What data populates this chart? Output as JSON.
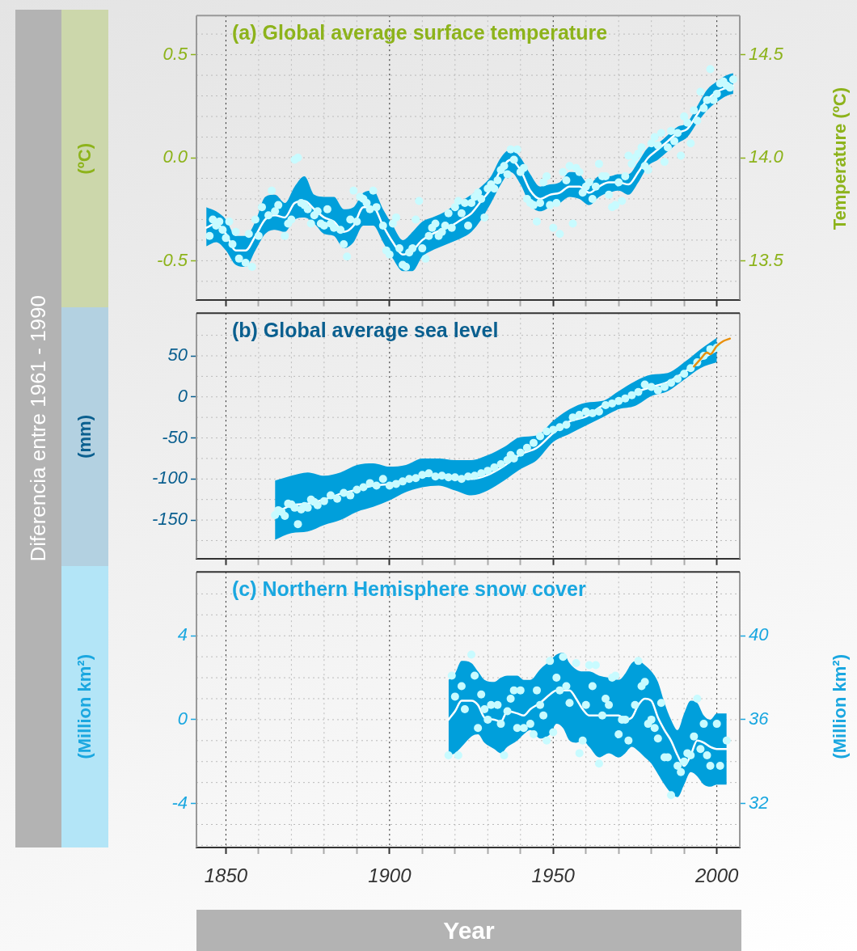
{
  "chart_data": [
    {
      "type": "line",
      "title": "(a) Global average surface temperature",
      "ylabel": "(ºC)",
      "y2label": "Temperature (ºC)",
      "annotations": [
        "Diferencia entre 1961 - 1990"
      ],
      "xlim": [
        1841,
        2007
      ],
      "xticks": [
        1850,
        {
          "value": 1860,
          "label": null
        },
        {
          "value": 1870,
          "label": null
        },
        {
          "value": 1880,
          "label": null
        },
        {
          "value": 1890,
          "label": null
        },
        1900,
        {
          "value": 1910,
          "label": null
        },
        {
          "value": 1920,
          "label": null
        },
        {
          "value": 1930,
          "label": null
        },
        {
          "value": 1940,
          "label": null
        },
        1950,
        {
          "value": 1960,
          "label": null
        },
        {
          "value": 1970,
          "label": null
        },
        {
          "value": 1980,
          "label": null
        },
        {
          "value": 1990,
          "label": null
        },
        2000
      ],
      "ylim": [
        -0.69,
        0.69
      ],
      "yticks": [
        {
          "value": -0.6,
          "label": null
        },
        -0.5,
        {
          "value": -0.4,
          "label": null
        },
        {
          "value": -0.3,
          "label": null
        },
        {
          "value": -0.2,
          "label": null
        },
        {
          "value": -0.1,
          "label": null
        },
        {
          "value": 0,
          "label": "0.0"
        },
        {
          "value": 0.1,
          "label": null
        },
        {
          "value": 0.2,
          "label": null
        },
        {
          "value": 0.3,
          "label": null
        },
        {
          "value": 0.4,
          "label": null
        },
        0.5,
        {
          "value": 0.6,
          "label": null
        }
      ],
      "y2lim": [
        13.31,
        14.69
      ],
      "y2ticks": [
        13.5,
        {
          "value": 14,
          "label": "14.0"
        },
        14.5
      ],
      "grid": true,
      "tick_labels": "y",
      "series": [
        {
          "type": "line",
          "color": "#ffffff",
          "x": [
            1844,
            1847,
            1850,
            1853,
            1856,
            1859,
            1862,
            1865,
            1868,
            1871,
            1874,
            1877,
            1880,
            1883,
            1886,
            1889,
            1892,
            1895,
            1898,
            1901,
            1904,
            1907,
            1910,
            1913,
            1916,
            1919,
            1922,
            1925,
            1928,
            1931,
            1934,
            1937,
            1940,
            1943,
            1946,
            1949,
            1952,
            1955,
            1958,
            1961,
            1964,
            1967,
            1970,
            1973,
            1976,
            1979,
            1982,
            1985,
            1988,
            1991,
            1994,
            1997,
            2000,
            2003,
            2005
          ],
          "values": [
            -0.34,
            -0.32,
            -0.37,
            -0.45,
            -0.45,
            -0.38,
            -0.3,
            -0.28,
            -0.29,
            -0.22,
            -0.21,
            -0.25,
            -0.29,
            -0.31,
            -0.36,
            -0.33,
            -0.24,
            -0.24,
            -0.33,
            -0.41,
            -0.47,
            -0.45,
            -0.4,
            -0.37,
            -0.35,
            -0.33,
            -0.3,
            -0.27,
            -0.21,
            -0.15,
            -0.06,
            -0.01,
            -0.06,
            -0.16,
            -0.2,
            -0.18,
            -0.17,
            -0.14,
            -0.14,
            -0.17,
            -0.14,
            -0.12,
            -0.12,
            -0.13,
            -0.07,
            0.0,
            0.04,
            0.08,
            0.12,
            0.14,
            0.21,
            0.28,
            0.32,
            0.34,
            0.35
          ],
          "upper": [
            -0.24,
            -0.26,
            -0.3,
            -0.38,
            -0.38,
            -0.31,
            -0.19,
            -0.18,
            -0.22,
            -0.14,
            -0.09,
            -0.18,
            -0.19,
            -0.19,
            -0.25,
            -0.24,
            -0.17,
            -0.16,
            -0.25,
            -0.33,
            -0.4,
            -0.36,
            -0.31,
            -0.29,
            -0.27,
            -0.24,
            -0.21,
            -0.18,
            -0.14,
            -0.09,
            0.0,
            0.04,
            0.0,
            -0.08,
            -0.14,
            -0.13,
            -0.12,
            -0.07,
            -0.08,
            -0.13,
            -0.09,
            -0.09,
            -0.08,
            -0.08,
            -0.02,
            0.05,
            0.07,
            0.11,
            0.15,
            0.17,
            0.25,
            0.33,
            0.37,
            0.4,
            0.41
          ],
          "lower": [
            -0.43,
            -0.41,
            -0.45,
            -0.52,
            -0.53,
            -0.45,
            -0.37,
            -0.35,
            -0.36,
            -0.3,
            -0.29,
            -0.32,
            -0.37,
            -0.38,
            -0.44,
            -0.41,
            -0.33,
            -0.33,
            -0.41,
            -0.49,
            -0.55,
            -0.55,
            -0.48,
            -0.45,
            -0.43,
            -0.41,
            -0.39,
            -0.36,
            -0.3,
            -0.22,
            -0.13,
            -0.07,
            -0.13,
            -0.23,
            -0.26,
            -0.24,
            -0.22,
            -0.19,
            -0.2,
            -0.23,
            -0.19,
            -0.17,
            -0.16,
            -0.18,
            -0.12,
            -0.04,
            -0.01,
            0.03,
            0.07,
            0.1,
            0.17,
            0.23,
            0.27,
            0.3,
            0.31
          ]
        },
        {
          "type": "scatter",
          "color": "#c8fbff",
          "marker": "circle",
          "x": [
            1845,
            1846,
            1847,
            1848,
            1849,
            1850,
            1851,
            1852,
            1853,
            1854,
            1856,
            1857,
            1858,
            1859,
            1860,
            1861,
            1863,
            1864,
            1865,
            1866,
            1868,
            1869,
            1870,
            1871,
            1872,
            1873,
            1874,
            1875,
            1876,
            1877,
            1878,
            1879,
            1880,
            1881,
            1882,
            1883,
            1885,
            1886,
            1887,
            1888,
            1889,
            1890,
            1891,
            1892,
            1893,
            1894,
            1895,
            1896,
            1898,
            1899,
            1900,
            1901,
            1902,
            1903,
            1904,
            1905,
            1906,
            1907,
            1908,
            1909,
            1910,
            1911,
            1912,
            1913,
            1914,
            1915,
            1916,
            1917,
            1918,
            1919,
            1920,
            1921,
            1922,
            1923,
            1924,
            1925,
            1926,
            1927,
            1928,
            1929,
            1930,
            1931,
            1932,
            1933,
            1934,
            1935,
            1936,
            1937,
            1938,
            1939,
            1940,
            1941,
            1942,
            1943,
            1944,
            1945,
            1946,
            1947,
            1948,
            1949,
            1950,
            1951,
            1952,
            1953,
            1954,
            1955,
            1956,
            1957,
            1958,
            1959,
            1960,
            1961,
            1962,
            1963,
            1964,
            1965,
            1966,
            1967,
            1968,
            1969,
            1970,
            1971,
            1972,
            1973,
            1974,
            1975,
            1976,
            1977,
            1978,
            1979,
            1980,
            1981,
            1982,
            1983,
            1984,
            1985,
            1986,
            1987,
            1988,
            1989,
            1990,
            1991,
            1992,
            1993,
            1994,
            1995,
            1996,
            1997,
            1998,
            1999,
            2000,
            2001,
            2002,
            2003,
            2004,
            2005
          ],
          "values": [
            -0.38,
            -0.3,
            -0.33,
            -0.31,
            -0.35,
            -0.39,
            -0.31,
            -0.42,
            -0.36,
            -0.49,
            -0.51,
            -0.37,
            -0.53,
            -0.3,
            -0.38,
            -0.24,
            -0.28,
            -0.16,
            -0.26,
            -0.23,
            -0.38,
            -0.32,
            -0.3,
            -0.01,
            0.0,
            -0.22,
            -0.23,
            -0.25,
            -0.32,
            -0.28,
            -0.26,
            -0.32,
            -0.33,
            -0.25,
            -0.32,
            -0.34,
            -0.35,
            -0.42,
            -0.48,
            -0.3,
            -0.16,
            -0.31,
            -0.19,
            -0.2,
            -0.22,
            -0.25,
            -0.16,
            -0.24,
            -0.33,
            -0.45,
            -0.47,
            -0.32,
            -0.29,
            -0.44,
            -0.52,
            -0.53,
            -0.46,
            -0.44,
            -0.3,
            -0.21,
            -0.44,
            -0.49,
            -0.38,
            -0.34,
            -0.32,
            -0.38,
            -0.36,
            -0.33,
            -0.27,
            -0.34,
            -0.24,
            -0.21,
            -0.27,
            -0.22,
            -0.33,
            -0.22,
            -0.19,
            -0.17,
            -0.2,
            -0.29,
            -0.15,
            -0.13,
            -0.15,
            -0.11,
            -0.06,
            -0.04,
            -0.08,
            0.04,
            -0.01,
            0.04,
            -0.07,
            -0.05,
            -0.2,
            -0.22,
            -0.23,
            -0.31,
            -0.22,
            -0.12,
            -0.09,
            -0.23,
            -0.34,
            -0.22,
            -0.37,
            -0.07,
            -0.11,
            -0.04,
            -0.32,
            -0.05,
            -0.07,
            -0.17,
            -0.14,
            -0.12,
            -0.2,
            -0.14,
            -0.03,
            -0.09,
            -0.09,
            -0.18,
            -0.24,
            -0.23,
            -0.12,
            -0.21,
            -0.09,
            0.01,
            -0.03,
            0.0,
            0.02,
            0.05,
            -0.04,
            -0.06,
            0.07,
            0.1,
            0.06,
            0.12,
            -0.02,
            0.05,
            0.13,
            0.08,
            0.12,
            0.01,
            0.2,
            0.17,
            0.07,
            0.23,
            0.18,
            0.32,
            0.24,
            0.28,
            0.43,
            0.28,
            0.31,
            0.36,
            0.37,
            0.35,
            0.34,
            0.38
          ]
        }
      ]
    },
    {
      "type": "line",
      "title": "(b) Global average sea level",
      "ylabel": "(mm)",
      "xlim": [
        1841,
        2007
      ],
      "xticks": [
        1850,
        {
          "value": 1860,
          "label": null
        },
        {
          "value": 1870,
          "label": null
        },
        {
          "value": 1880,
          "label": null
        },
        {
          "value": 1890,
          "label": null
        },
        1900,
        {
          "value": 1910,
          "label": null
        },
        {
          "value": 1920,
          "label": null
        },
        {
          "value": 1930,
          "label": null
        },
        {
          "value": 1940,
          "label": null
        },
        1950,
        {
          "value": 1960,
          "label": null
        },
        {
          "value": 1970,
          "label": null
        },
        {
          "value": 1980,
          "label": null
        },
        {
          "value": 1990,
          "label": null
        },
        2000
      ],
      "ylim": [
        -197,
        102
      ],
      "yticks": [
        {
          "value": -175,
          "label": null
        },
        -150,
        {
          "value": -125,
          "label": null
        },
        -100,
        {
          "value": -75,
          "label": null
        },
        -50,
        {
          "value": -25,
          "label": null
        },
        0,
        {
          "value": 25,
          "label": null
        },
        50,
        {
          "value": 75,
          "label": null
        }
      ],
      "grid": true,
      "tick_labels": "y",
      "series": [
        {
          "type": "line",
          "color": "#ffffff",
          "x": [
            1865,
            1870,
            1875,
            1880,
            1885,
            1890,
            1895,
            1900,
            1905,
            1910,
            1915,
            1920,
            1925,
            1930,
            1935,
            1940,
            1945,
            1950,
            1955,
            1960,
            1965,
            1970,
            1975,
            1980,
            1985,
            1990,
            1995,
            2000
          ],
          "values": [
            -142,
            -132,
            -130,
            -125,
            -118,
            -113,
            -108,
            -106,
            -101,
            -97,
            -95,
            -97,
            -100,
            -95,
            -84,
            -70,
            -62,
            -44,
            -30,
            -24,
            -11,
            -6,
            5,
            12,
            18,
            30,
            45,
            57
          ],
          "upper": [
            -102,
            -96,
            -92,
            -96,
            -92,
            -83,
            -81,
            -85,
            -83,
            -75,
            -75,
            -77,
            -77,
            -71,
            -61,
            -49,
            -47,
            -29,
            -15,
            -7,
            -5,
            7,
            19,
            27,
            29,
            42,
            58,
            72
          ],
          "lower": [
            -174,
            -166,
            -164,
            -156,
            -150,
            -140,
            -134,
            -126,
            -116,
            -110,
            -108,
            -114,
            -120,
            -114,
            -102,
            -88,
            -77,
            -55,
            -45,
            -35,
            -25,
            -15,
            -11,
            1,
            7,
            21,
            35,
            42
          ]
        },
        {
          "type": "scatter",
          "color": "#c8fbff",
          "marker": "circle",
          "x": [
            1865,
            1866,
            1867,
            1868,
            1869,
            1870,
            1871,
            1872,
            1873,
            1874,
            1875,
            1876,
            1877,
            1878,
            1880,
            1882,
            1884,
            1886,
            1888,
            1890,
            1892,
            1894,
            1896,
            1898,
            1900,
            1902,
            1904,
            1906,
            1908,
            1910,
            1912,
            1914,
            1916,
            1918,
            1920,
            1922,
            1924,
            1926,
            1928,
            1930,
            1932,
            1934,
            1936,
            1937,
            1938,
            1940,
            1942,
            1944,
            1946,
            1948,
            1950,
            1952,
            1954,
            1956,
            1958,
            1960,
            1962,
            1964,
            1966,
            1968,
            1970,
            1972,
            1974,
            1976,
            1978,
            1980,
            1982,
            1984,
            1986,
            1988,
            1990,
            1992,
            1994,
            1996,
            1998,
            2000
          ],
          "values": [
            -144,
            -138,
            -140,
            -145,
            -130,
            -131,
            -135,
            -155,
            -137,
            -133,
            -135,
            -125,
            -128,
            -132,
            -127,
            -120,
            -124,
            -117,
            -120,
            -113,
            -110,
            -105,
            -108,
            -100,
            -108,
            -106,
            -103,
            -100,
            -99,
            -95,
            -93,
            -97,
            -96,
            -98,
            -98,
            -100,
            -97,
            -96,
            -93,
            -90,
            -86,
            -82,
            -77,
            -71,
            -75,
            -68,
            -62,
            -56,
            -48,
            -42,
            -40,
            -37,
            -34,
            -25,
            -22,
            -18,
            -20,
            -18,
            -10,
            -8,
            -5,
            -2,
            2,
            6,
            15,
            12,
            8,
            12,
            17,
            22,
            28,
            35,
            42,
            50,
            58,
            60
          ]
        },
        {
          "type": "line",
          "color": "#e8900c",
          "x": [
            1993,
            1995,
            1997,
            1998,
            2000,
            2002,
            2004
          ],
          "values": [
            37,
            46,
            54,
            52,
            62,
            68,
            71
          ]
        }
      ]
    },
    {
      "type": "line",
      "title": "(c) Northern Hemisphere snow cover",
      "ylabel": "(Million km²)",
      "y2label": "(Million km²)",
      "xlabel": "Year",
      "xlim": [
        1841,
        2007
      ],
      "xticks": [
        1850,
        {
          "value": 1860,
          "label": null
        },
        {
          "value": 1870,
          "label": null
        },
        {
          "value": 1880,
          "label": null
        },
        {
          "value": 1890,
          "label": null
        },
        1900,
        {
          "value": 1910,
          "label": null
        },
        {
          "value": 1920,
          "label": null
        },
        {
          "value": 1930,
          "label": null
        },
        {
          "value": 1940,
          "label": null
        },
        1950,
        {
          "value": 1960,
          "label": null
        },
        {
          "value": 1970,
          "label": null
        },
        {
          "value": 1980,
          "label": null
        },
        {
          "value": 1990,
          "label": null
        },
        2000
      ],
      "ylim": [
        -6.1,
        7.05
      ],
      "yticks": [
        {
          "value": -6,
          "label": null
        },
        {
          "value": -5,
          "label": null
        },
        -4,
        {
          "value": -3,
          "label": null
        },
        {
          "value": -2,
          "label": null
        },
        {
          "value": -1,
          "label": null
        },
        0,
        {
          "value": 1,
          "label": null
        },
        {
          "value": 2,
          "label": null
        },
        {
          "value": 3,
          "label": null
        },
        4,
        {
          "value": 5,
          "label": null
        },
        {
          "value": 6,
          "label": null
        }
      ],
      "y2lim": [
        29.9,
        43.05
      ],
      "y2ticks": [
        32,
        36,
        40
      ],
      "grid": true,
      "series": [
        {
          "type": "line",
          "color": "#ffffff",
          "x": [
            1918,
            1920,
            1922,
            1925,
            1927,
            1929,
            1932,
            1934,
            1936,
            1939,
            1941,
            1943,
            1946,
            1949,
            1951,
            1953,
            1955,
            1957,
            1959,
            1961,
            1964,
            1967,
            1970,
            1972,
            1974,
            1976,
            1978,
            1980,
            1982,
            1984,
            1986,
            1988,
            1990,
            1992,
            1994,
            1996,
            1998,
            2000,
            2003
          ],
          "values": [
            0.0,
            0.4,
            0.9,
            0.9,
            0.7,
            0.1,
            0.0,
            -0.1,
            0.4,
            0.3,
            0.2,
            0.5,
            0.8,
            1.2,
            1.4,
            1.4,
            1.4,
            1.0,
            0.5,
            0.2,
            0.2,
            0.2,
            0.2,
            0.0,
            0.1,
            0.7,
            1.0,
            0.9,
            0.1,
            -0.5,
            -1.0,
            -1.7,
            -2.2,
            -1.7,
            -1.0,
            -1.1,
            -1.3,
            -1.4,
            -1.4
          ],
          "upper": [
            1.9,
            2.2,
            2.8,
            2.7,
            2.3,
            1.9,
            1.8,
            2.0,
            2.1,
            2.1,
            1.9,
            1.9,
            2.4,
            2.8,
            3.1,
            3.2,
            2.7,
            2.4,
            2.3,
            2.3,
            2.1,
            2.0,
            1.9,
            2.2,
            2.7,
            2.8,
            2.6,
            2.3,
            1.8,
            0.8,
            0.0,
            -0.5,
            0.3,
            0.9,
            0.8,
            0.2,
            0.0,
            0.3,
            0.3
          ],
          "lower": [
            -1.7,
            -1.6,
            -1.3,
            -0.8,
            -0.7,
            -1.1,
            -1.4,
            -1.6,
            -1.3,
            -1.0,
            -0.7,
            -0.5,
            -0.9,
            -0.7,
            -0.2,
            -0.4,
            -1.0,
            -1.1,
            -1.0,
            -1.3,
            -1.8,
            -1.6,
            -1.8,
            -1.6,
            -1.3,
            -1.5,
            -1.8,
            -2.1,
            -2.6,
            -3.1,
            -3.5,
            -3.7,
            -3.1,
            -2.5,
            -2.7,
            -3.1,
            -3.2,
            -3.1,
            -3.1
          ]
        },
        {
          "type": "scatter",
          "color": "#c8fbff",
          "marker": "circle",
          "x": [
            1918,
            1919,
            1920,
            1921,
            1922,
            1923,
            1925,
            1926,
            1927,
            1928,
            1929,
            1930,
            1931,
            1933,
            1934,
            1935,
            1936,
            1937,
            1938,
            1939,
            1940,
            1941,
            1943,
            1944,
            1945,
            1946,
            1947,
            1948,
            1949,
            1950,
            1951,
            1952,
            1953,
            1954,
            1955,
            1957,
            1958,
            1959,
            1960,
            1961,
            1962,
            1963,
            1964,
            1965,
            1966,
            1967,
            1968,
            1969,
            1970,
            1971,
            1972,
            1973,
            1975,
            1976,
            1977,
            1978,
            1979,
            1980,
            1981,
            1982,
            1983,
            1984,
            1985,
            1986,
            1988,
            1989,
            1990,
            1991,
            1992,
            1993,
            1994,
            1995,
            1996,
            1997,
            1998,
            2000,
            2001,
            2003
          ],
          "values": [
            -1.7,
            2.1,
            1.1,
            -1.7,
            1.6,
            0.5,
            3.1,
            2.1,
            -0.4,
            1.2,
            0.5,
            0.0,
            0.7,
            0.7,
            -0.2,
            -1.7,
            0.4,
            1.0,
            1.4,
            -0.4,
            1.4,
            -0.4,
            -0.2,
            -0.7,
            1.4,
            0.7,
            0.2,
            -1.0,
            2.8,
            -0.6,
            2.0,
            1.4,
            3.0,
            1.6,
            0.8,
            2.7,
            -1.6,
            -1.0,
            0.7,
            2.6,
            1.6,
            2.6,
            -2.1,
            0.2,
            1.0,
            0.7,
            2.0,
            2.1,
            -0.7,
            0.0,
            0.0,
            -1.0,
            0.7,
            2.8,
            1.6,
            1.8,
            -0.2,
            0.0,
            -0.4,
            -0.9,
            0.8,
            -1.8,
            -1.8,
            -3.6,
            -2.2,
            -2.5,
            -2.0,
            -1.6,
            -1.7,
            -0.8,
            1.0,
            -1.4,
            -0.2,
            -1.7,
            -2.2,
            -0.2,
            -2.2,
            -1.0
          ]
        }
      ]
    }
  ]
}
